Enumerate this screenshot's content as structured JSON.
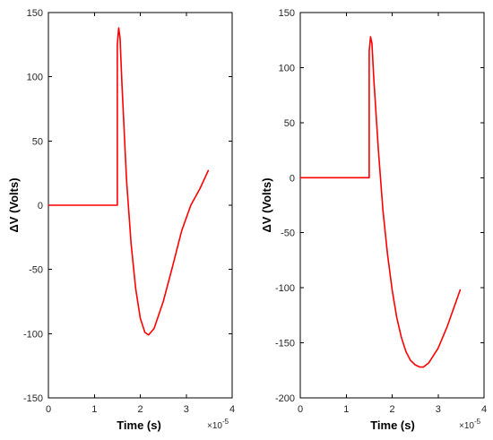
{
  "chart_data": [
    {
      "type": "line",
      "xlabel": "Time  (s)",
      "ylabel": "ΔV  (Volts)",
      "x_exponent_label": "×10",
      "x_exponent": "-5",
      "xlim": [
        0,
        4
      ],
      "ylim": [
        -150,
        150
      ],
      "xticks": [
        0,
        1,
        2,
        3,
        4
      ],
      "yticks": [
        -150,
        -100,
        -50,
        0,
        50,
        100,
        150
      ],
      "xtick_labels": [
        "0",
        "1",
        "2",
        "3",
        "4"
      ],
      "ytick_labels": [
        "-150",
        "-100",
        "-50",
        "0",
        "50",
        "100",
        "150"
      ],
      "series": [
        {
          "color": "#ff0000",
          "x": [
            0,
            1.5,
            1.5,
            1.53,
            1.56,
            1.6,
            1.7,
            1.8,
            1.9,
            2.0,
            2.1,
            2.18,
            2.3,
            2.5,
            2.7,
            2.9,
            3.1,
            3.3,
            3.48
          ],
          "y": [
            0,
            0,
            125,
            138,
            130,
            95,
            20,
            -30,
            -65,
            -88,
            -99,
            -101,
            -96,
            -75,
            -48,
            -20,
            0,
            13,
            27
          ]
        }
      ]
    },
    {
      "type": "line",
      "xlabel": "Time  (s)",
      "ylabel": "ΔV  (Volts)",
      "x_exponent_label": "×10",
      "x_exponent": "-5",
      "xlim": [
        0,
        4
      ],
      "ylim": [
        -200,
        150
      ],
      "xticks": [
        0,
        1,
        2,
        3,
        4
      ],
      "yticks": [
        -200,
        -150,
        -100,
        -50,
        0,
        50,
        100,
        150
      ],
      "xtick_labels": [
        "0",
        "1",
        "2",
        "3",
        "4"
      ],
      "ytick_labels": [
        "-200",
        "-150",
        "-100",
        "-50",
        "0",
        "50",
        "100",
        "150"
      ],
      "series": [
        {
          "color": "#ff0000",
          "x": [
            0,
            1.5,
            1.5,
            1.53,
            1.56,
            1.6,
            1.7,
            1.8,
            1.9,
            2.0,
            2.1,
            2.2,
            2.3,
            2.4,
            2.5,
            2.6,
            2.68,
            2.8,
            3.0,
            3.2,
            3.48
          ],
          "y": [
            0,
            0,
            115,
            128,
            122,
            90,
            25,
            -30,
            -70,
            -102,
            -127,
            -145,
            -158,
            -166,
            -170,
            -172,
            -172,
            -168,
            -155,
            -135,
            -102
          ]
        }
      ]
    }
  ]
}
